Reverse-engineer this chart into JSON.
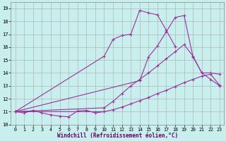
{
  "xlabel": "Windchill (Refroidissement éolien,°C)",
  "bg_color": "#c8eeee",
  "grid_color": "#aaaaaa",
  "line_color": "#993399",
  "xlim_min": -0.5,
  "xlim_max": 23.5,
  "ylim_min": 10.0,
  "ylim_max": 19.5,
  "yticks": [
    10,
    11,
    12,
    13,
    14,
    15,
    16,
    17,
    18,
    19
  ],
  "xticks": [
    0,
    1,
    2,
    3,
    4,
    5,
    6,
    7,
    8,
    9,
    10,
    11,
    12,
    13,
    14,
    15,
    16,
    17,
    18,
    19,
    20,
    21,
    22,
    23
  ],
  "series": [
    {
      "x": [
        0,
        1,
        2,
        3,
        4,
        5,
        6,
        7,
        8,
        9,
        10
      ],
      "y": [
        11.0,
        10.9,
        11.1,
        10.9,
        10.75,
        10.65,
        10.6,
        11.05,
        11.1,
        10.9,
        11.0
      ]
    },
    {
      "x": [
        0,
        10,
        11,
        12,
        13,
        14,
        15,
        16,
        17,
        18,
        19,
        20,
        21,
        22,
        23
      ],
      "y": [
        11.0,
        15.3,
        16.6,
        16.9,
        17.0,
        18.85,
        18.65,
        18.5,
        17.3,
        16.05,
        null,
        null,
        null,
        null,
        null
      ]
    },
    {
      "x": [
        0,
        14,
        15,
        16,
        17,
        18,
        19,
        20,
        21,
        22,
        23
      ],
      "y": [
        11.0,
        13.4,
        15.25,
        16.1,
        17.2,
        18.3,
        18.45,
        15.25,
        14.0,
        14.0,
        13.9
      ]
    },
    {
      "x": [
        0,
        10,
        11,
        12,
        13,
        14,
        15,
        16,
        17,
        18,
        19,
        20,
        21,
        22,
        23
      ],
      "y": [
        11.0,
        11.3,
        11.8,
        12.4,
        13.0,
        13.5,
        14.0,
        14.55,
        15.1,
        15.65,
        16.2,
        15.3,
        14.0,
        13.5,
        13.0
      ]
    },
    {
      "x": [
        0,
        10,
        11,
        12,
        13,
        14,
        15,
        16,
        17,
        18,
        19,
        20,
        21,
        22,
        23
      ],
      "y": [
        11.0,
        11.0,
        11.15,
        11.35,
        11.6,
        11.85,
        12.1,
        12.4,
        12.65,
        12.95,
        13.25,
        13.5,
        13.75,
        13.9,
        13.05
      ]
    }
  ]
}
